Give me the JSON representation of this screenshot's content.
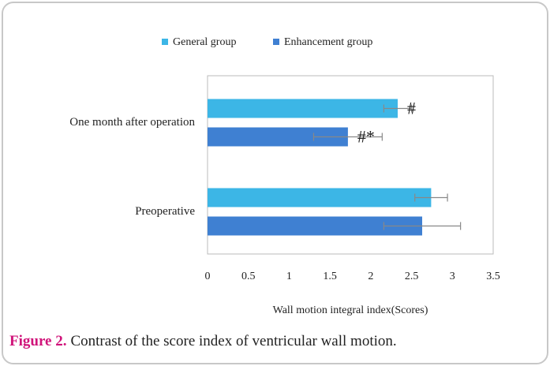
{
  "chart_data": {
    "type": "barh",
    "categories": [
      "One month after operation",
      "Preoperative"
    ],
    "series": [
      {
        "name": "General group",
        "color": "#3cb6e6",
        "values": [
          2.33,
          2.74
        ],
        "errors": [
          0.17,
          0.2
        ],
        "annotations": [
          "#",
          null
        ]
      },
      {
        "name": "Enhancement group",
        "color": "#3f80d2",
        "values": [
          1.72,
          2.63
        ],
        "errors": [
          0.42,
          0.47
        ],
        "annotations": [
          "#*",
          null
        ]
      }
    ],
    "xlabel": "Wall motion integral index(Scores)",
    "xlim": [
      0,
      3.5
    ],
    "xticks": [
      0,
      0.5,
      1,
      1.5,
      2,
      2.5,
      3,
      3.5
    ],
    "grid": false
  },
  "caption": {
    "label": "Figure 2.",
    "text": "Contrast of the score index of ventricular wall motion."
  }
}
